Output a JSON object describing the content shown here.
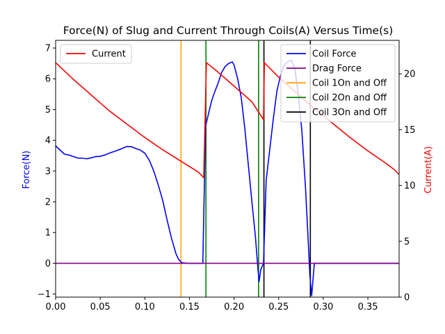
{
  "chart_data": {
    "type": "line",
    "title": "Force(N) of Slug and Current Through Coils(A) Versus Time(s)",
    "xlabel": "",
    "ylabel_left": "Force(N)",
    "ylabel_right": "Current(A)",
    "xlim": [
      0,
      0.385
    ],
    "ylim_left": [
      -1.1,
      7.25
    ],
    "ylim_right": [
      0,
      23
    ],
    "x_ticks": [
      0.0,
      0.05,
      0.1,
      0.15,
      0.2,
      0.25,
      0.3,
      0.35
    ],
    "x_tick_labels": [
      "0.00",
      "0.05",
      "0.10",
      "0.15",
      "0.20",
      "0.25",
      "0.30",
      "0.35"
    ],
    "y_left_ticks": [
      -1,
      0,
      1,
      2,
      3,
      4,
      5,
      6,
      7
    ],
    "y_left_tick_labels": [
      "−1",
      "0",
      "1",
      "2",
      "3",
      "4",
      "5",
      "6",
      "7"
    ],
    "y_right_ticks": [
      0,
      5,
      10,
      15,
      20
    ],
    "y_right_tick_labels": [
      "0",
      "5",
      "10",
      "15",
      "20"
    ],
    "grid": false,
    "colors": {
      "left_axis_label": "#0000ff",
      "right_axis_label": "#ff0000"
    },
    "legend_left": {
      "placement": "upper-left",
      "entries": [
        {
          "name": "Current",
          "color": "#ff0000"
        }
      ]
    },
    "legend_right": {
      "placement": "upper-right",
      "entries": [
        {
          "name": "Coil Force",
          "color": "#0000ff"
        },
        {
          "name": "Drag Force",
          "color": "#8a008a"
        },
        {
          "name": "Coil 1On and Off",
          "color": "#ffa500"
        },
        {
          "name": "Coil 2On and Off",
          "color": "#008000"
        },
        {
          "name": "Coil 3On and Off",
          "color": "#000000"
        }
      ]
    },
    "series": [
      {
        "name": "Coil Force",
        "axis": "left",
        "color": "#0000ff",
        "x": [
          0.0,
          0.005,
          0.01,
          0.015,
          0.02,
          0.025,
          0.03,
          0.035,
          0.04,
          0.045,
          0.05,
          0.055,
          0.06,
          0.065,
          0.07,
          0.075,
          0.08,
          0.085,
          0.09,
          0.095,
          0.1,
          0.105,
          0.11,
          0.115,
          0.12,
          0.125,
          0.13,
          0.135,
          0.138,
          0.141,
          0.143,
          0.15,
          0.16,
          0.165,
          0.168,
          0.17,
          0.175,
          0.178,
          0.182,
          0.186,
          0.19,
          0.194,
          0.198,
          0.2,
          0.204,
          0.208,
          0.212,
          0.216,
          0.22,
          0.224,
          0.226,
          0.228,
          0.23,
          0.233,
          0.236,
          0.24,
          0.244,
          0.248,
          0.252,
          0.256,
          0.26,
          0.264,
          0.268,
          0.272,
          0.276,
          0.28,
          0.283,
          0.285,
          0.287,
          0.29,
          0.3,
          0.385
        ],
        "y": [
          3.82,
          3.68,
          3.55,
          3.52,
          3.47,
          3.42,
          3.42,
          3.4,
          3.43,
          3.47,
          3.48,
          3.52,
          3.58,
          3.63,
          3.68,
          3.74,
          3.8,
          3.79,
          3.73,
          3.68,
          3.58,
          3.35,
          3.0,
          2.55,
          2.05,
          1.4,
          0.8,
          0.3,
          0.12,
          0.03,
          0.01,
          0.0,
          0.0,
          0.0,
          4.45,
          4.7,
          5.3,
          5.55,
          5.85,
          6.2,
          6.4,
          6.5,
          6.55,
          6.45,
          6.0,
          5.4,
          4.4,
          3.2,
          2.0,
          0.85,
          0.1,
          -0.6,
          -0.2,
          0.0,
          2.7,
          3.7,
          4.7,
          5.6,
          6.1,
          6.45,
          6.55,
          6.6,
          6.35,
          5.5,
          4.3,
          2.5,
          0.8,
          -0.4,
          -1.05,
          0.0,
          0.0,
          0.0
        ]
      },
      {
        "name": "Drag Force",
        "axis": "left",
        "color": "#8a008a",
        "x": [
          0.0,
          0.385
        ],
        "y": [
          0.0,
          0.0
        ]
      },
      {
        "name": "Current",
        "axis": "right",
        "color": "#ff0000",
        "x": [
          0.0,
          0.02,
          0.04,
          0.06,
          0.08,
          0.1,
          0.12,
          0.14,
          0.16,
          0.166,
          0.169,
          0.18,
          0.2,
          0.22,
          0.233,
          0.234,
          0.25,
          0.27,
          0.29,
          0.31,
          0.33,
          0.35,
          0.37,
          0.38,
          0.3845
        ],
        "y": [
          21.0,
          19.5,
          18.1,
          16.7,
          15.5,
          14.3,
          13.2,
          12.2,
          11.2,
          10.7,
          21.0,
          20.3,
          18.9,
          17.5,
          15.9,
          21.0,
          19.7,
          18.3,
          16.9,
          15.6,
          14.3,
          13.1,
          12.0,
          11.4,
          11.0
        ]
      }
    ],
    "vlines": [
      {
        "name": "Coil 1On and Off",
        "color": "#ffa500",
        "x": [
          0.1405
        ]
      },
      {
        "name": "Coil 2On and Off",
        "color": "#008000",
        "x": [
          0.1685,
          0.2275
        ]
      },
      {
        "name": "Coil 3On and Off",
        "color": "#000000",
        "x": [
          0.2335,
          0.2855
        ]
      }
    ]
  }
}
